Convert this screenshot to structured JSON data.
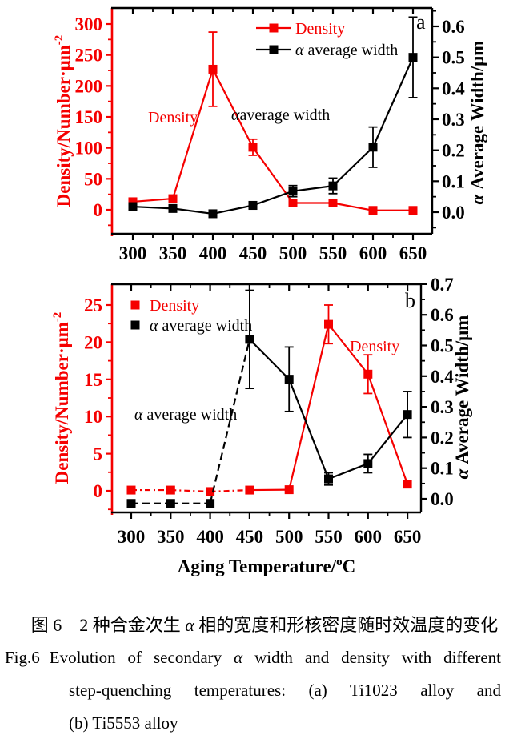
{
  "colors": {
    "red": "#f50000",
    "black": "#000000"
  },
  "chart_data": [
    {
      "type": "line",
      "panel_label": "a",
      "x_categories": [
        300,
        350,
        400,
        450,
        500,
        550,
        600,
        650
      ],
      "xlabel": null,
      "ylabel_left": {
        "text": "Density/Number·μm",
        "sup": "-2"
      },
      "ylabel_right": {
        "italic": "α",
        "text": " Average Width/μm"
      },
      "ylim_left": [
        0,
        300
      ],
      "ytick_left_step": 50,
      "ylim_right": [
        0,
        0.6
      ],
      "ytick_right_step": 0.1,
      "legend_style": "line-marker",
      "series": [
        {
          "name_italic": "",
          "name": "Density",
          "axis": "left",
          "color": "red",
          "values": [
            13,
            18,
            227,
            101,
            11,
            11,
            -1,
            -1
          ],
          "err": [
            4,
            5,
            60,
            13,
            3,
            3,
            0,
            0
          ],
          "dash_until": 0
        },
        {
          "name_italic": "α",
          "name": " average width",
          "axis": "right",
          "color": "black",
          "values": [
            0.018,
            0.012,
            -0.005,
            0.022,
            0.068,
            0.085,
            0.21,
            0.5
          ],
          "err": [
            0.008,
            0.006,
            0.006,
            0.012,
            0.018,
            0.025,
            0.065,
            0.13
          ],
          "dash_until": 0
        }
      ],
      "annotations": [
        {
          "italic": "",
          "text": "Density",
          "color": "red"
        },
        {
          "italic": "α",
          "text": "average width",
          "color": "black"
        }
      ]
    },
    {
      "type": "line",
      "panel_label": "b",
      "x_categories": [
        300,
        350,
        400,
        450,
        500,
        550,
        600,
        650
      ],
      "xlabel": {
        "text": "Aging Temperature/",
        "sup": "o",
        "tail": "C"
      },
      "ylabel_left": {
        "text": "Density/Number·μm",
        "sup": "-2"
      },
      "ylabel_right": {
        "italic": "α",
        "text": " Average Width/μm"
      },
      "ylim_left": [
        0,
        25
      ],
      "ytick_left_step": 5,
      "ylim_right": [
        0,
        0.7
      ],
      "ytick_right_step": 0.1,
      "legend_style": "marker",
      "series": [
        {
          "name_italic": "",
          "name": "Density",
          "axis": "left",
          "color": "red",
          "values": [
            0.1,
            0.1,
            -0.1,
            0.1,
            0.15,
            22.4,
            15.7,
            0.9
          ],
          "err": [
            0,
            0,
            0,
            0,
            0,
            2.6,
            2.6,
            0
          ],
          "dash_until": 3
        },
        {
          "name_italic": "α",
          "name": " average width",
          "axis": "right",
          "color": "black",
          "values": [
            -0.015,
            -0.015,
            -0.015,
            0.52,
            0.39,
            0.065,
            0.115,
            0.275
          ],
          "err": [
            0,
            0,
            0,
            0.16,
            0.105,
            0.02,
            0.03,
            0.075
          ],
          "dash_until": 3
        }
      ],
      "annotations": [
        {
          "italic": "α",
          "text": " average width",
          "color": "black"
        },
        {
          "italic": "",
          "text": "Density",
          "color": "red"
        }
      ]
    }
  ],
  "caption": {
    "zh_pre": "图 6　2 种合金次生 ",
    "zh_alpha": "α",
    "zh_post": " 相的宽度和形核密度随时效温度的变化",
    "fig_label": "Fig.6",
    "en_l1_pre": "Evolution of secondary ",
    "en_l1_alpha": "α",
    "en_l1_post": " width and density with different",
    "en_l2": "step-quenching temperatures: (a) Ti1023 alloy and",
    "en_l3": "(b) Ti5553 alloy"
  }
}
